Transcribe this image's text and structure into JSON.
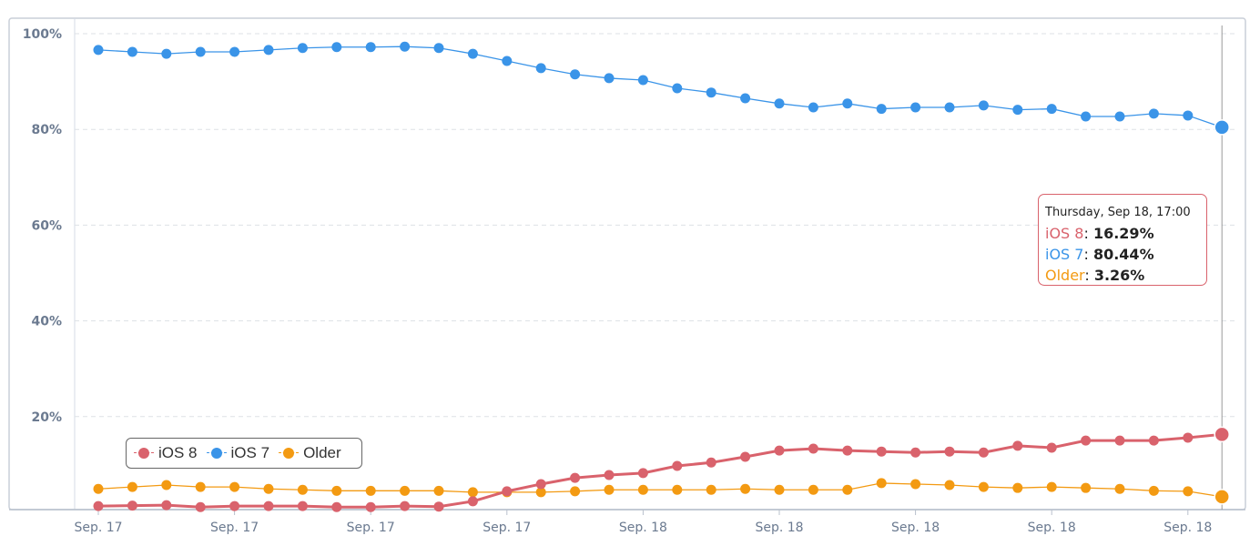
{
  "chart_data": {
    "type": "line",
    "title": "",
    "xlabel": "",
    "ylabel": "",
    "ylim": [
      0,
      100
    ],
    "yticks": [
      "20%",
      "40%",
      "60%",
      "80%",
      "100%"
    ],
    "ytick_values": [
      20,
      40,
      60,
      80,
      100
    ],
    "xtick_labels": [
      "Sep. 17",
      "Sep. 17",
      "Sep. 17",
      "Sep. 17",
      "Sep. 18",
      "Sep. 18",
      "Sep. 18",
      "Sep. 18",
      "Sep. 18"
    ],
    "xtick_every": 4,
    "grid": true,
    "legend_placement": "bottom-left",
    "series": [
      {
        "name": "iOS 8",
        "color": "#d9626c",
        "values": [
          1.3,
          1.4,
          1.5,
          1.1,
          1.3,
          1.3,
          1.3,
          1.1,
          1.1,
          1.3,
          1.2,
          2.3,
          4.4,
          5.9,
          7.2,
          7.8,
          8.2,
          9.7,
          10.4,
          11.6,
          12.9,
          13.3,
          12.9,
          12.7,
          12.5,
          12.7,
          12.5,
          13.9,
          13.5,
          15.0,
          15.0,
          15.0,
          15.6,
          16.29
        ]
      },
      {
        "name": "iOS 7",
        "color": "#3a94e8",
        "values": [
          96.6,
          96.2,
          95.8,
          96.2,
          96.2,
          96.6,
          97.0,
          97.2,
          97.2,
          97.3,
          97.0,
          95.8,
          94.3,
          92.8,
          91.5,
          90.7,
          90.3,
          88.6,
          87.7,
          86.5,
          85.4,
          84.6,
          85.4,
          84.3,
          84.6,
          84.6,
          85.0,
          84.1,
          84.3,
          82.7,
          82.7,
          83.3,
          82.9,
          80.44
        ]
      },
      {
        "name": "Older",
        "color": "#f39a12",
        "values": [
          4.9,
          5.3,
          5.7,
          5.3,
          5.3,
          4.9,
          4.7,
          4.5,
          4.5,
          4.5,
          4.5,
          4.2,
          4.2,
          4.2,
          4.4,
          4.7,
          4.7,
          4.7,
          4.7,
          4.9,
          4.7,
          4.7,
          4.7,
          6.1,
          5.9,
          5.7,
          5.3,
          5.1,
          5.3,
          5.1,
          4.9,
          4.5,
          4.4,
          3.26
        ]
      }
    ],
    "tooltip": {
      "header": "Thursday, Sep 18, 17:00",
      "rows": [
        {
          "name": "iOS 8",
          "value": "16.29%"
        },
        {
          "name": "iOS 7",
          "value": "80.44%"
        },
        {
          "name": "Older",
          "value": "3.26%"
        }
      ]
    }
  }
}
